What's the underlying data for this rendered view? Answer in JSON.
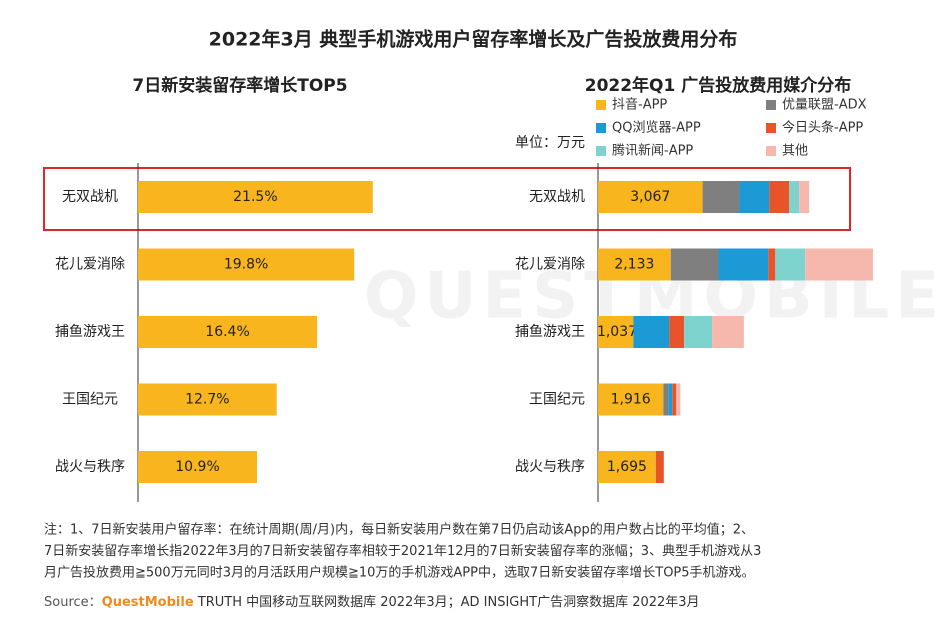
{
  "title": "2022年3月 典型手机游戏用户留存率增长及广告投放费用分布",
  "watermark": "QUESTMOBILE",
  "chart_data": [
    {
      "type": "bar",
      "orientation": "horizontal",
      "title": "7日新安装留存率增长TOP5",
      "categories": [
        "无双战机",
        "花儿爱消除",
        "捕鱼游戏王",
        "王国纪元",
        "战火与秩序"
      ],
      "values": [
        21.5,
        19.8,
        16.4,
        12.7,
        10.9
      ],
      "value_labels": [
        "21.5%",
        "19.8%",
        "16.4%",
        "12.7%",
        "10.9%"
      ],
      "color": "#f8b51e",
      "xlim": [
        0,
        25
      ]
    },
    {
      "type": "stacked_bar",
      "orientation": "horizontal",
      "title": "2022年Q1 广告投放费用媒介分布",
      "unit_label": "单位：万元",
      "categories": [
        "无双战机",
        "花儿爱消除",
        "捕鱼游戏王",
        "王国纪元",
        "战火与秩序"
      ],
      "series": [
        {
          "name": "抖音-APP",
          "color": "#f8b51e",
          "values": [
            3067,
            2133,
            1037,
            1916,
            1695
          ],
          "value_labels": [
            "3,067",
            "2,133",
            "1,037",
            "1,916",
            "1,695"
          ]
        },
        {
          "name": "优量联盟-ADX",
          "color": "#7f7f7f",
          "values": [
            1080,
            1400,
            0,
            146,
            0
          ]
        },
        {
          "name": "QQ浏览器-APP",
          "color": "#1b9ad6",
          "values": [
            876,
            1460,
            1050,
            117,
            0
          ]
        },
        {
          "name": "今日头条-APP",
          "color": "#e8542a",
          "values": [
            584,
            205,
            438,
            117,
            234
          ]
        },
        {
          "name": "腾讯新闻-APP",
          "color": "#7fd3cf",
          "values": [
            292,
            876,
            818,
            0,
            0
          ]
        },
        {
          "name": "其他",
          "color": "#f6b8ad",
          "values": [
            292,
            1986,
            934,
            117,
            0
          ]
        }
      ],
      "xlim": [
        0,
        9000
      ]
    }
  ],
  "note_lines": [
    "注：1、7日新安装用户留存率：在统计周期(周/月)内，每日新安装用户数在第7日仍启动该App的用户数占比的平均值；2、",
    "7日新安装留存率增长指2022年3月的7日新安装留存率相较于2021年12月的7日新安装留存率的涨幅；3、典型手机游戏从3",
    "月广告投放费用≧500万元同时3月的月活跃用户规模≧10万的手机游戏APP中，选取7日新安装留存率增长TOP5手机游戏。"
  ],
  "source": {
    "label": "Source：",
    "brand": "QuestMobile",
    "text": " TRUTH 中国移动互联网数据库 2022年3月；AD INSIGHT广告洞察数据库 2022年3月"
  }
}
